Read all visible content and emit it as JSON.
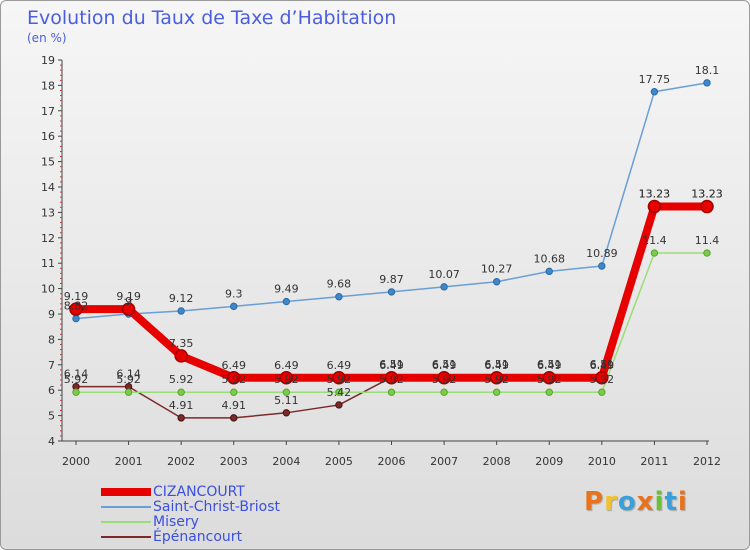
{
  "header": {
    "title": "Evolution du Taux de Taxe d’Habitation",
    "unit": "(en %)"
  },
  "logo": {
    "text": "Proxiti",
    "colors": [
      "#e8731c",
      "#f2c12e",
      "#3aa0d8",
      "#e8731c",
      "#6cbf3a",
      "#3aa0d8",
      "#e8731c"
    ]
  },
  "chart_data": {
    "type": "line",
    "x": [
      "2000",
      "2001",
      "2002",
      "2003",
      "2004",
      "2005",
      "2006",
      "2007",
      "2008",
      "2009",
      "2010",
      "2011",
      "2012"
    ],
    "ylim": [
      4,
      19
    ],
    "yticks": [
      "4",
      "5",
      "6",
      "7",
      "8",
      "9",
      "10",
      "11",
      "12",
      "13",
      "14",
      "15",
      "16",
      "17",
      "18",
      "19"
    ],
    "grid": false,
    "legend_position": "bottom-left",
    "series": [
      {
        "name": "CIZANCOURT",
        "color": "#e60000",
        "values": [
          9.19,
          9.19,
          7.35,
          6.49,
          6.49,
          6.49,
          6.49,
          6.49,
          6.49,
          6.49,
          6.49,
          13.23,
          13.23
        ],
        "labels": [
          "9.19",
          "9.19",
          "7.35",
          "6.49",
          "6.49",
          "6.49",
          "6.49",
          "6.49",
          "6.49",
          "6.49",
          "6.49",
          "13.23",
          "13.23"
        ]
      },
      {
        "name": "Saint-Christ-Briost",
        "color": "#6a9ed6",
        "values": [
          8.82,
          9,
          9.12,
          9.3,
          9.49,
          9.68,
          9.87,
          10.07,
          10.27,
          10.68,
          10.89,
          17.75,
          18.1
        ],
        "labels": [
          "8.82",
          "9",
          "9.12",
          "9.3",
          "9.49",
          "9.68",
          "9.87",
          "10.07",
          "10.27",
          "10.68",
          "10.89",
          "17.75",
          "18.1"
        ]
      },
      {
        "name": "Misery",
        "color": "#99dd77",
        "values": [
          5.92,
          5.92,
          5.92,
          5.92,
          5.92,
          5.92,
          5.92,
          5.92,
          5.92,
          5.92,
          5.92,
          11.4,
          11.4
        ],
        "labels": [
          "5.92",
          "5.92",
          "5.92",
          "5.92",
          "5.92",
          "5.92",
          "5.92",
          "5.92",
          "5.92",
          "5.92",
          "5.92",
          "11.4",
          "11.4"
        ]
      },
      {
        "name": "Épénancourt",
        "color": "#7a2a2a",
        "values": [
          6.14,
          6.14,
          4.91,
          4.91,
          5.11,
          5.42,
          6.51,
          6.51,
          6.51,
          6.51,
          6.51,
          13.23,
          13.23
        ],
        "labels": [
          "6.14",
          "6.14",
          "4.91",
          "4.91",
          "5.11",
          "5.42",
          "6.51",
          "6.51",
          "6.51",
          "6.51",
          "6.51",
          "13.23",
          "13.23"
        ]
      }
    ]
  }
}
